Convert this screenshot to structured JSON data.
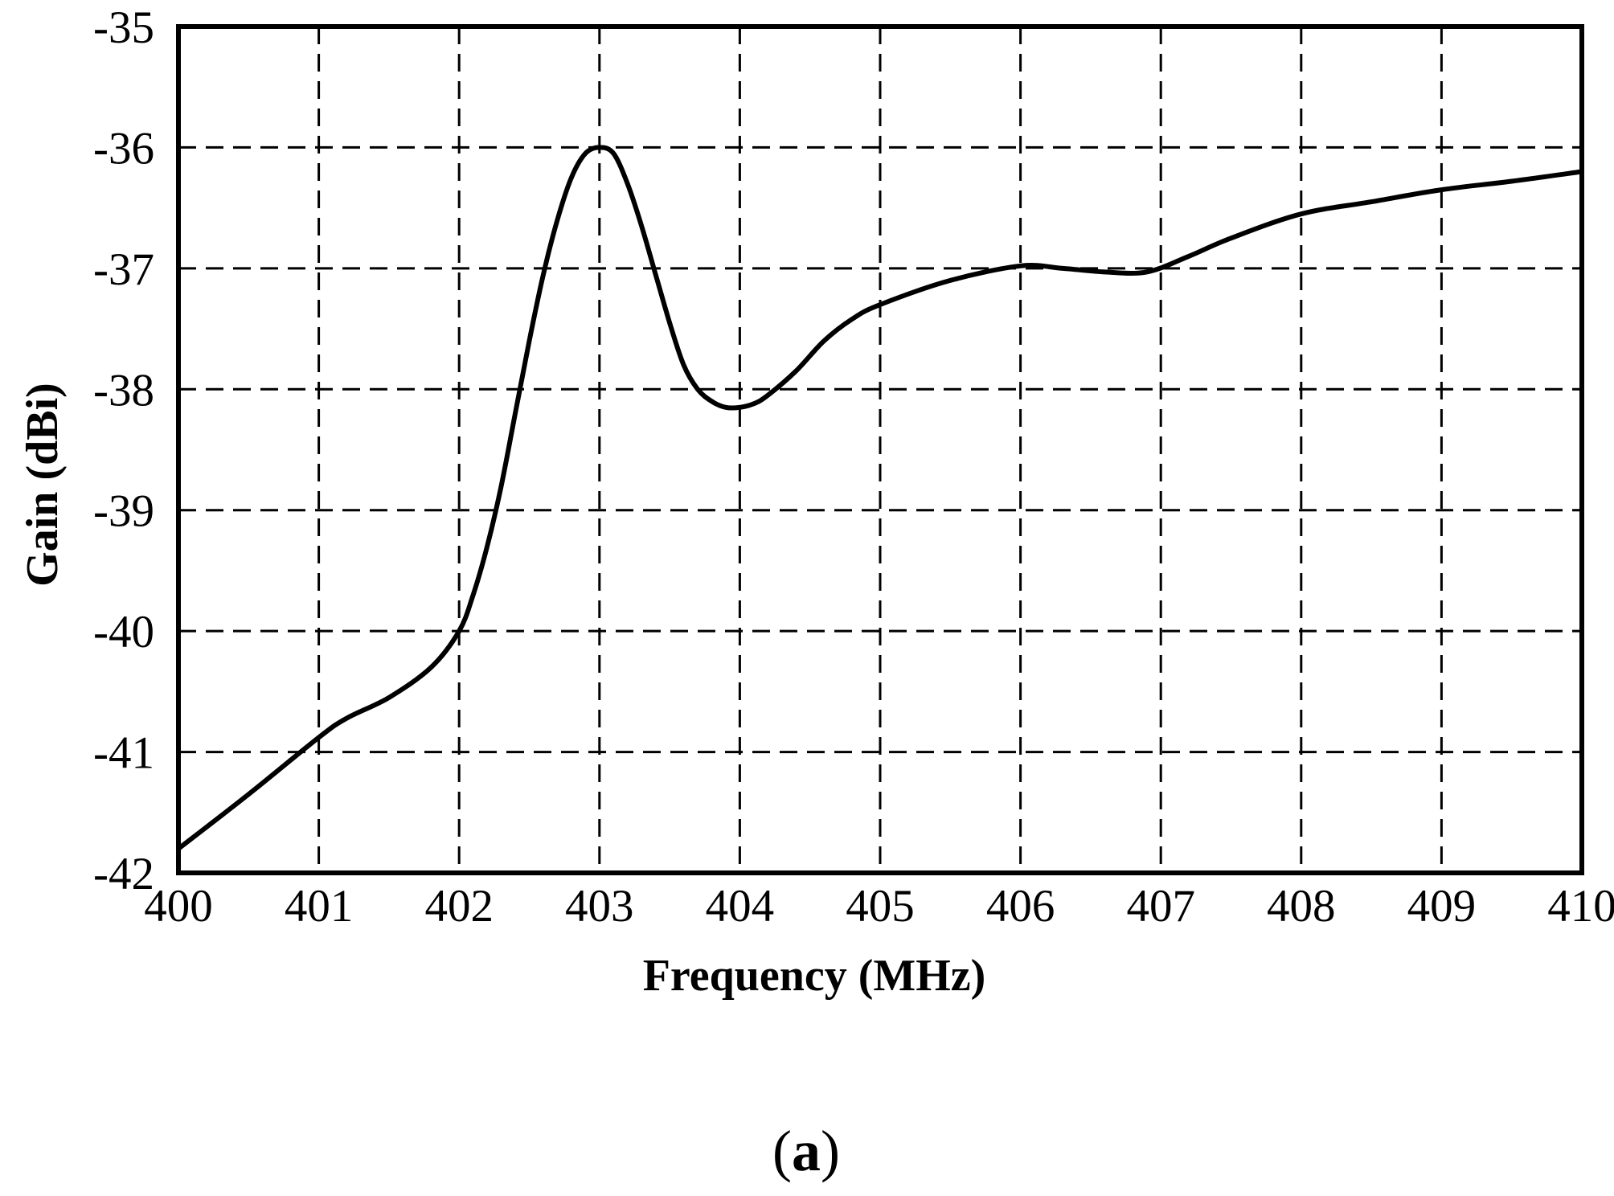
{
  "chart_data": {
    "type": "line",
    "title": "",
    "xlabel": "Frequency (MHz)",
    "ylabel": "Gain (dBi)",
    "xlim": [
      400,
      410
    ],
    "ylim": [
      -42,
      -35
    ],
    "x_ticks": [
      "400",
      "401",
      "402",
      "403",
      "404",
      "405",
      "406",
      "407",
      "408",
      "409",
      "410"
    ],
    "y_ticks": [
      "-35",
      "-36",
      "-37",
      "-38",
      "-39",
      "-40",
      "-41",
      "-42"
    ],
    "grid": true,
    "grid_style": "dashed",
    "line_color": "#000000",
    "series": [
      {
        "x": [
          400.0,
          400.5,
          401.0,
          401.2,
          401.5,
          401.8,
          402.0,
          402.1,
          402.2,
          402.3,
          402.4,
          402.5,
          402.6,
          402.7,
          402.8,
          402.9,
          403.0,
          403.1,
          403.2,
          403.3,
          403.4,
          403.5,
          403.6,
          403.7,
          403.8,
          403.9,
          404.0,
          404.1,
          404.2,
          404.4,
          404.6,
          404.8,
          405.0,
          405.5,
          406.0,
          406.3,
          406.6,
          406.9,
          407.2,
          407.5,
          408.0,
          408.5,
          409.0,
          409.5,
          410.0
        ],
        "y": [
          -41.8,
          -41.35,
          -40.88,
          -40.72,
          -40.55,
          -40.3,
          -40.0,
          -39.7,
          -39.3,
          -38.8,
          -38.2,
          -37.6,
          -37.05,
          -36.6,
          -36.25,
          -36.05,
          -36.0,
          -36.05,
          -36.3,
          -36.65,
          -37.05,
          -37.45,
          -37.8,
          -38.0,
          -38.1,
          -38.15,
          -38.15,
          -38.12,
          -38.05,
          -37.85,
          -37.6,
          -37.42,
          -37.3,
          -37.1,
          -36.98,
          -37.0,
          -37.03,
          -37.03,
          -36.9,
          -36.75,
          -36.55,
          -36.45,
          -36.35,
          -36.28,
          -36.2
        ]
      }
    ]
  },
  "caption": {
    "open": "(",
    "letter": "a",
    "close": ")"
  }
}
